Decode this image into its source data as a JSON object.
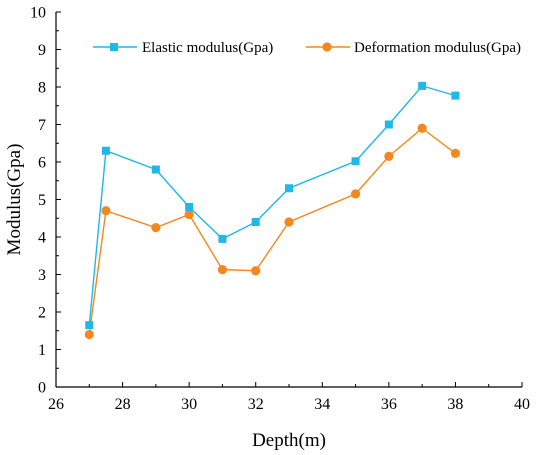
{
  "chart_data": {
    "type": "line",
    "xlabel": "Depth(m)",
    "ylabel": "Modulus(Gpa)",
    "xlim": [
      26,
      40
    ],
    "ylim": [
      0,
      10
    ],
    "xticks": [
      "26",
      "28",
      "30",
      "32",
      "34",
      "36",
      "38",
      "40"
    ],
    "yticks": [
      "0",
      "1",
      "2",
      "3",
      "4",
      "5",
      "6",
      "7",
      "8",
      "9",
      "10"
    ],
    "grid": false,
    "legend_position": "top",
    "series": [
      {
        "name": "Elastic modulus(Gpa)",
        "color": "#1FB8E8",
        "marker": "square",
        "x": [
          27,
          27.5,
          29,
          30,
          31,
          32,
          33,
          35,
          36,
          37,
          38
        ],
        "y": [
          1.65,
          6.3,
          5.8,
          4.8,
          3.95,
          4.4,
          5.3,
          6.02,
          7.0,
          8.03,
          7.77
        ]
      },
      {
        "name": "Deformation modulus(Gpa)",
        "color": "#F5871F",
        "marker": "circle",
        "x": [
          27,
          27.5,
          29,
          30,
          31,
          32,
          33,
          35,
          36,
          37,
          38
        ],
        "y": [
          1.4,
          4.7,
          4.25,
          4.6,
          3.13,
          3.1,
          4.4,
          5.15,
          6.15,
          6.9,
          6.23
        ]
      }
    ]
  }
}
